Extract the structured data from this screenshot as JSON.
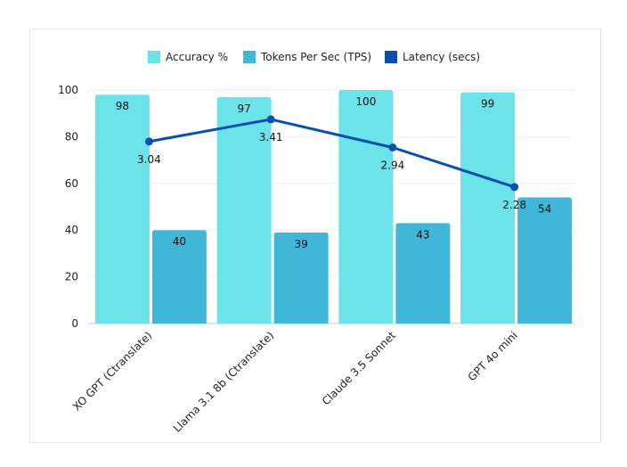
{
  "chart_data": {
    "type": "bar",
    "categories": [
      "XO GPT (Ctranslate)",
      "Llama 3.1 8b (Ctranslate)",
      "Claude 3.5 Sonnet",
      "GPT 4o mini"
    ],
    "series": [
      {
        "name": "Accuracy %",
        "kind": "bar",
        "color": "#6ce3e8",
        "values": [
          98,
          97,
          100,
          99
        ]
      },
      {
        "name": "Tokens Per Sec (TPS)",
        "kind": "bar",
        "color": "#40b6d8",
        "values": [
          40,
          39,
          43,
          54
        ]
      },
      {
        "name": "Latency (secs)",
        "kind": "line",
        "color": "#0b4fae",
        "values": [
          3.04,
          3.41,
          2.94,
          2.28
        ]
      }
    ],
    "ylim": [
      0,
      100
    ],
    "yticks": [
      0,
      20,
      40,
      60,
      80,
      100
    ],
    "secondary_ylim": [
      0,
      3.9
    ],
    "legend_position": "top-center",
    "grid": true
  }
}
